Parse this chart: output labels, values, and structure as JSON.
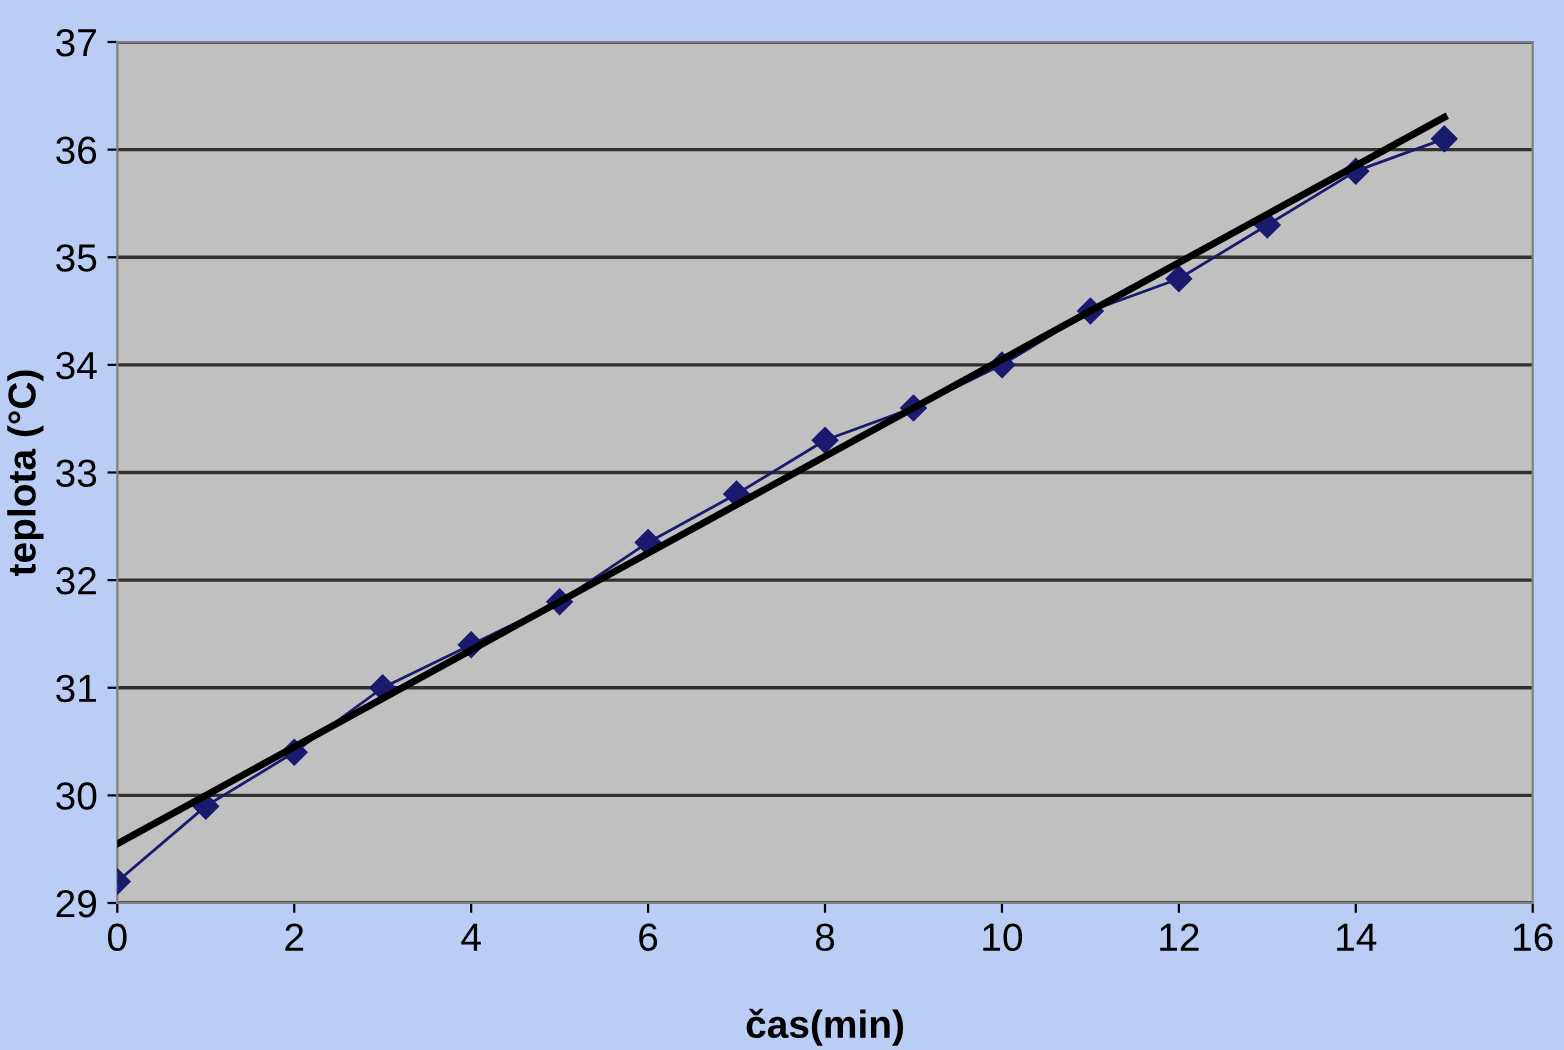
{
  "chart_data": {
    "type": "line",
    "xlabel": "čas(min)",
    "ylabel": "teplota (°C)",
    "xlim": [
      0,
      16
    ],
    "xticks": [
      0,
      2,
      4,
      6,
      8,
      10,
      12,
      14,
      16
    ],
    "ylim": [
      29,
      37
    ],
    "yticks": [
      29,
      30,
      31,
      32,
      33,
      34,
      35,
      36,
      37
    ],
    "grid": "y",
    "legend": false,
    "series": [
      {
        "color": "#1a1a6e",
        "marker": "diamond",
        "x": [
          0,
          1,
          2,
          3,
          4,
          5,
          6,
          7,
          8,
          9,
          10,
          11,
          12,
          13,
          14,
          15
        ],
        "values": [
          29.2,
          29.9,
          30.4,
          31.0,
          31.4,
          31.8,
          32.35,
          32.8,
          33.3,
          33.6,
          34.0,
          34.5,
          34.8,
          35.3,
          35.8,
          36.1
        ]
      },
      {
        "color": "#000000",
        "marker": "none",
        "x": [
          0,
          15
        ],
        "values": [
          29.55,
          36.3
        ]
      }
    ]
  }
}
